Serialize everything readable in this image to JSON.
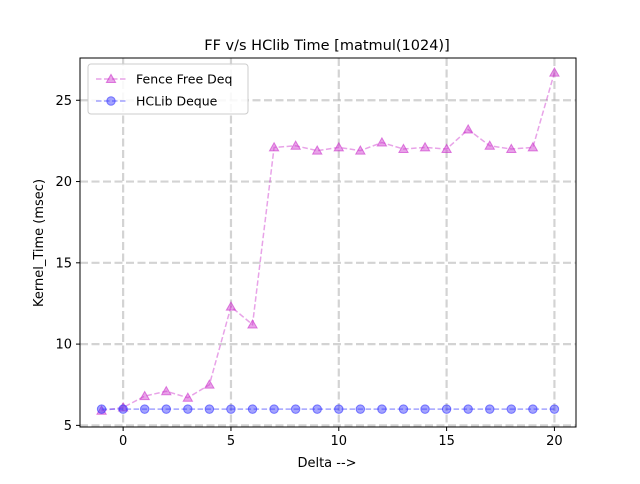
{
  "chart_data": {
    "type": "line",
    "title": "FF v/s HClib Time [matmul(1024)]",
    "xlabel": "Delta -->",
    "ylabel": "Kernel_Time (msec)",
    "xlim": [
      -2,
      21
    ],
    "ylim": [
      4.9,
      27.6
    ],
    "xticks": [
      0,
      5,
      10,
      15,
      20
    ],
    "yticks": [
      5,
      10,
      15,
      20,
      25
    ],
    "grid": true,
    "legend_position": "top-left",
    "x": [
      -1,
      0,
      1,
      2,
      3,
      4,
      5,
      6,
      7,
      8,
      9,
      10,
      11,
      12,
      13,
      14,
      15,
      16,
      17,
      18,
      19,
      20
    ],
    "series": [
      {
        "name": "Fence Free Deq",
        "marker": "triangle",
        "color": "#cc33cc",
        "values": [
          5.9,
          6.1,
          6.8,
          7.1,
          6.7,
          7.5,
          12.3,
          11.2,
          22.1,
          22.2,
          21.9,
          22.1,
          21.9,
          22.4,
          22.0,
          22.1,
          22.0,
          23.2,
          22.2,
          22.0,
          22.1,
          26.7
        ]
      },
      {
        "name": "HCLib Deque",
        "marker": "circle",
        "color": "#3333ff",
        "values": [
          6.0,
          6.0,
          6.0,
          6.0,
          6.0,
          6.0,
          6.0,
          6.0,
          6.0,
          6.0,
          6.0,
          6.0,
          6.0,
          6.0,
          6.0,
          6.0,
          6.0,
          6.0,
          6.0,
          6.0,
          6.0,
          6.0
        ]
      }
    ]
  }
}
